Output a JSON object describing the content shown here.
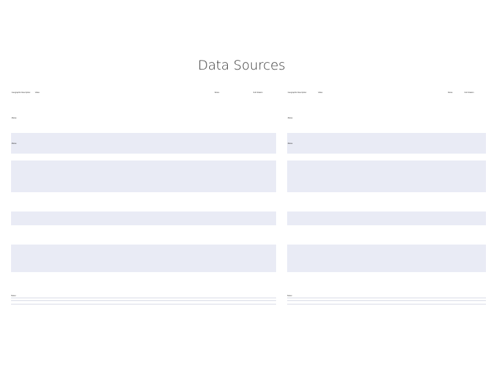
{
  "title": "Data Sources",
  "tables": [
    {
      "columns": [
        "Geographic Description",
        "Value",
        "",
        "",
        "",
        "",
        "",
        "",
        "Notes",
        "Full Citation"
      ],
      "rows": [
        [
          "Maine",
          "",
          "",
          "",
          "",
          "",
          "",
          "",
          "",
          ""
        ],
        [
          "Maine",
          "",
          "",
          "",
          "",
          "",
          "",
          "",
          "",
          ""
        ],
        [
          "",
          "",
          "",
          "",
          "",
          "",
          "",
          "",
          "",
          ""
        ],
        [
          "",
          "",
          "",
          "",
          "",
          "",
          "",
          "",
          "",
          ""
        ],
        [
          "",
          "",
          "",
          "",
          "",
          "",
          "",
          "",
          "",
          ""
        ],
        [
          "",
          "",
          "",
          "",
          "",
          "",
          "",
          "",
          "",
          ""
        ],
        [
          "",
          "",
          "",
          "",
          "",
          "",
          "",
          "",
          "",
          ""
        ],
        [
          "",
          "",
          "",
          "",
          "",
          "",
          "",
          "",
          "",
          ""
        ]
      ],
      "notes": [
        "Notes:",
        "",
        ""
      ]
    },
    {
      "columns": [
        "Geographic Description",
        "Value",
        "",
        "",
        "",
        "",
        "",
        "",
        "Notes",
        "Full Citation"
      ],
      "rows": [
        [
          "Maine",
          "",
          "",
          "",
          "",
          "",
          "",
          "",
          "",
          ""
        ],
        [
          "Maine",
          "",
          "",
          "",
          "",
          "",
          "",
          "",
          "",
          ""
        ],
        [
          "",
          "",
          "",
          "",
          "",
          "",
          "",
          "",
          "",
          ""
        ],
        [
          "",
          "",
          "",
          "",
          "",
          "",
          "",
          "",
          "",
          ""
        ],
        [
          "",
          "",
          "",
          "",
          "",
          "",
          "",
          "",
          "",
          ""
        ],
        [
          "",
          "",
          "",
          "",
          "",
          "",
          "",
          "",
          "",
          ""
        ],
        [
          "",
          "",
          "",
          "",
          "",
          "",
          "",
          "",
          "",
          ""
        ],
        [
          "",
          "",
          "",
          "",
          "",
          "",
          "",
          "",
          "",
          ""
        ]
      ],
      "notes": [
        "Notes:",
        "",
        ""
      ]
    }
  ]
}
